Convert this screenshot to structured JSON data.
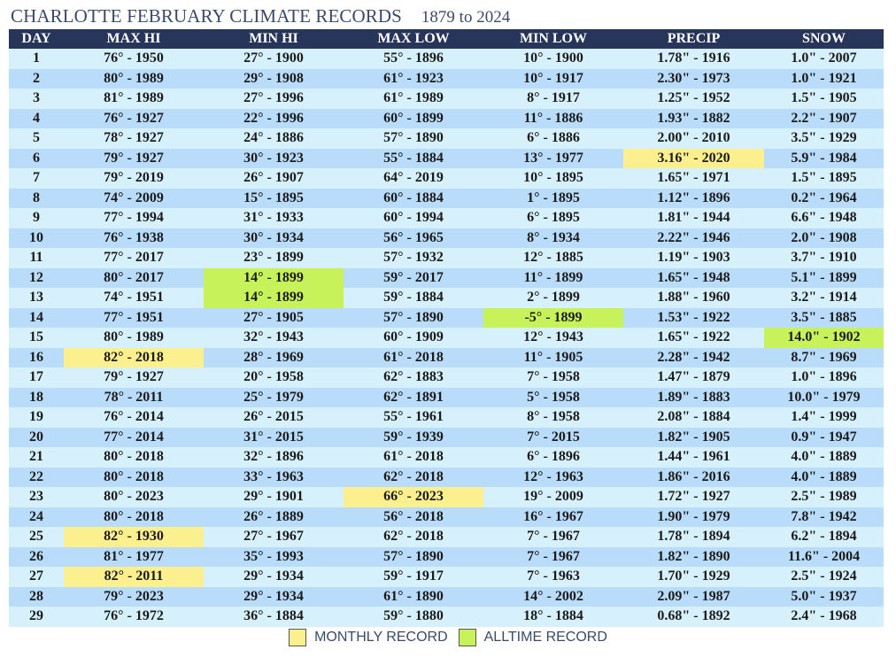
{
  "title": "CHARLOTTE FEBRUARY CLIMATE RECORDS",
  "years": "1879 to 2024",
  "columns": [
    "DAY",
    "MAX HI",
    "MIN HI",
    "MAX LOW",
    "MIN LOW",
    "PRECIP",
    "SNOW"
  ],
  "rows": [
    {
      "day": "1",
      "max_hi": "76° - 1950",
      "min_hi": "27° - 1900",
      "max_low": "55° - 1896",
      "min_low": "10° - 1900",
      "precip": "1.78\" - 1916",
      "snow": "1.0\" - 2007"
    },
    {
      "day": "2",
      "max_hi": "80° - 1989",
      "min_hi": "29° - 1908",
      "max_low": "61° - 1923",
      "min_low": "10° - 1917",
      "precip": "2.30\" - 1973",
      "snow": "1.0\" - 1921"
    },
    {
      "day": "3",
      "max_hi": "81° - 1989",
      "min_hi": "27° - 1996",
      "max_low": "61° - 1989",
      "min_low": "8° - 1917",
      "precip": "1.25\" - 1952",
      "snow": "1.5\" - 1905"
    },
    {
      "day": "4",
      "max_hi": "76° - 1927",
      "min_hi": "22° - 1996",
      "max_low": "60° - 1899",
      "min_low": "11° - 1886",
      "precip": "1.93\" - 1882",
      "snow": "2.2\" - 1907"
    },
    {
      "day": "5",
      "max_hi": "78° - 1927",
      "min_hi": "24° - 1886",
      "max_low": "57° - 1890",
      "min_low": "6° - 1886",
      "precip": "2.00\" - 2010",
      "snow": "3.5\" - 1929"
    },
    {
      "day": "6",
      "max_hi": "79° - 1927",
      "min_hi": "30° - 1923",
      "max_low": "55° - 1884",
      "min_low": "13° - 1977",
      "precip": "3.16\" - 2020",
      "snow": "5.9\" - 1984"
    },
    {
      "day": "7",
      "max_hi": "79° - 2019",
      "min_hi": "26° - 1907",
      "max_low": "64° - 2019",
      "min_low": "10° - 1895",
      "precip": "1.65\" - 1971",
      "snow": "1.5\" - 1895"
    },
    {
      "day": "8",
      "max_hi": "74° - 2009",
      "min_hi": "15° - 1895",
      "max_low": "60° - 1884",
      "min_low": "1° - 1895",
      "precip": "1.12\" - 1896",
      "snow": "0.2\" - 1964"
    },
    {
      "day": "9",
      "max_hi": "77° - 1994",
      "min_hi": "31° - 1933",
      "max_low": "60° - 1994",
      "min_low": "6° - 1895",
      "precip": "1.81\" - 1944",
      "snow": "6.6\" - 1948"
    },
    {
      "day": "10",
      "max_hi": "76° - 1938",
      "min_hi": "30° - 1934",
      "max_low": "56° - 1965",
      "min_low": "8° - 1934",
      "precip": "2.22\" - 1946",
      "snow": "2.0\" - 1908"
    },
    {
      "day": "11",
      "max_hi": "77° - 2017",
      "min_hi": "23° - 1899",
      "max_low": "57° - 1932",
      "min_low": "12° - 1885",
      "precip": "1.19\" - 1903",
      "snow": "3.7\" - 1910"
    },
    {
      "day": "12",
      "max_hi": "80° - 2017",
      "min_hi": "14° - 1899",
      "max_low": "59° - 2017",
      "min_low": "11° - 1899",
      "precip": "1.65\" - 1948",
      "snow": "5.1\" - 1899"
    },
    {
      "day": "13",
      "max_hi": "74° - 1951",
      "min_hi": "14° - 1899",
      "max_low": "59° - 1884",
      "min_low": "2° - 1899",
      "precip": "1.88\" - 1960",
      "snow": "3.2\" - 1914"
    },
    {
      "day": "14",
      "max_hi": "77° - 1951",
      "min_hi": "27° - 1905",
      "max_low": "57° - 1890",
      "min_low": "-5° - 1899",
      "precip": "1.53\" - 1922",
      "snow": "3.5\" - 1885"
    },
    {
      "day": "15",
      "max_hi": "80° - 1989",
      "min_hi": "32° - 1943",
      "max_low": "60° - 1909",
      "min_low": "12° - 1943",
      "precip": "1.65\" - 1922",
      "snow": "14.0\" - 1902"
    },
    {
      "day": "16",
      "max_hi": "82° - 2018",
      "min_hi": "28° - 1969",
      "max_low": "61° - 2018",
      "min_low": "11° - 1905",
      "precip": "2.28\" - 1942",
      "snow": "8.7\" - 1969"
    },
    {
      "day": "17",
      "max_hi": "79° - 1927",
      "min_hi": "20° - 1958",
      "max_low": "62° - 1883",
      "min_low": "7° - 1958",
      "precip": "1.47\" - 1879",
      "snow": "1.0\" - 1896"
    },
    {
      "day": "18",
      "max_hi": "78° - 2011",
      "min_hi": "25° - 1979",
      "max_low": "62° - 1891",
      "min_low": "5° - 1958",
      "precip": "1.89\" - 1883",
      "snow": "10.0\" - 1979"
    },
    {
      "day": "19",
      "max_hi": "76° - 2014",
      "min_hi": "26° - 2015",
      "max_low": "55° - 1961",
      "min_low": "8° - 1958",
      "precip": "2.08\" - 1884",
      "snow": "1.4\" - 1999"
    },
    {
      "day": "20",
      "max_hi": "77° - 2014",
      "min_hi": "31° - 2015",
      "max_low": "59° - 1939",
      "min_low": "7° - 2015",
      "precip": "1.82\" - 1905",
      "snow": "0.9\" - 1947"
    },
    {
      "day": "21",
      "max_hi": "80° - 2018",
      "min_hi": "32° - 1896",
      "max_low": "61° - 2018",
      "min_low": "6° - 1896",
      "precip": "1.44\" - 1961",
      "snow": "4.0\" - 1889"
    },
    {
      "day": "22",
      "max_hi": "80° - 2018",
      "min_hi": "33° - 1963",
      "max_low": "62° - 2018",
      "min_low": "12° - 1963",
      "precip": "1.86\" - 2016",
      "snow": "4.0\" - 1889"
    },
    {
      "day": "23",
      "max_hi": "80° - 2023",
      "min_hi": "29° - 1901",
      "max_low": "66° - 2023",
      "min_low": "19° - 2009",
      "precip": "1.72\" - 1927",
      "snow": "2.5\" - 1989"
    },
    {
      "day": "24",
      "max_hi": "80° - 2018",
      "min_hi": "26° - 1889",
      "max_low": "56° - 2018",
      "min_low": "16° - 1967",
      "precip": "1.90\" - 1979",
      "snow": "7.8\" - 1942"
    },
    {
      "day": "25",
      "max_hi": "82° - 1930",
      "min_hi": "27° - 1967",
      "max_low": "62° - 2018",
      "min_low": "7° - 1967",
      "precip": "1.78\" - 1894",
      "snow": "6.2\" - 1894"
    },
    {
      "day": "26",
      "max_hi": "81° - 1977",
      "min_hi": "35° - 1993",
      "max_low": "57° - 1890",
      "min_low": "7° - 1967",
      "precip": "1.82\" - 1890",
      "snow": "11.6\" - 2004"
    },
    {
      "day": "27",
      "max_hi": "82° - 2011",
      "min_hi": "29° - 1934",
      "max_low": "59° - 1917",
      "min_low": "7° - 1963",
      "precip": "1.70\" - 1929",
      "snow": "2.5\" - 1924"
    },
    {
      "day": "28",
      "max_hi": "79° - 2023",
      "min_hi": "29° - 1934",
      "max_low": "61° - 1890",
      "min_low": "14° - 2002",
      "precip": "2.09\" - 1987",
      "snow": "5.0\" - 1937"
    },
    {
      "day": "29",
      "max_hi": "76° - 1972",
      "min_hi": "36° - 1884",
      "max_low": "59° - 1880",
      "min_low": "18° - 1884",
      "precip": "0.68\" - 1892",
      "snow": "2.4\" - 1968"
    }
  ],
  "highlights": [
    {
      "row": 6,
      "col": "precip",
      "kind": "monthly"
    },
    {
      "row": 12,
      "col": "min_hi",
      "kind": "alltime"
    },
    {
      "row": 13,
      "col": "min_hi",
      "kind": "alltime"
    },
    {
      "row": 14,
      "col": "min_low",
      "kind": "alltime"
    },
    {
      "row": 15,
      "col": "snow",
      "kind": "alltime"
    },
    {
      "row": 16,
      "col": "max_hi",
      "kind": "monthly"
    },
    {
      "row": 23,
      "col": "max_low",
      "kind": "monthly"
    },
    {
      "row": 25,
      "col": "max_hi",
      "kind": "monthly"
    },
    {
      "row": 27,
      "col": "max_hi",
      "kind": "monthly"
    }
  ],
  "legend": {
    "monthly": "MONTHLY RECORD",
    "alltime": "ALLTIME RECORD"
  },
  "colors": {
    "header_bg": "#27355a",
    "row_light": "#d6f1fc",
    "row_dark": "#b9dcfa",
    "monthly_record": "#fbef8e",
    "alltime_record": "#c7f25a"
  }
}
